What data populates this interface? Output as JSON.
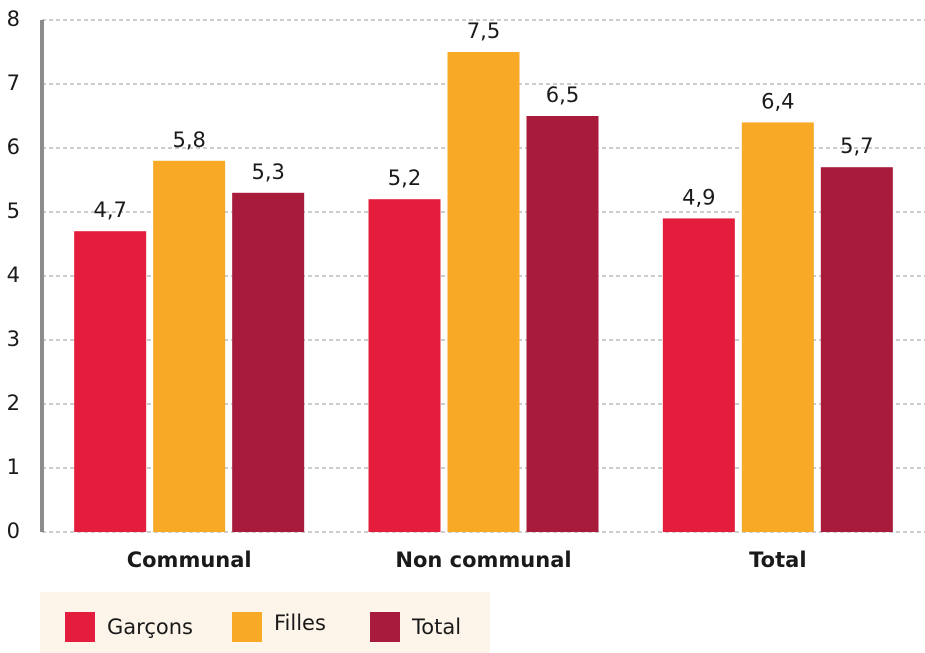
{
  "chart_data": {
    "type": "bar",
    "categories": [
      "Communal",
      "Non communal",
      "Total"
    ],
    "series": [
      {
        "name": "Garçons",
        "color": "#e31d3b",
        "values": [
          4.7,
          5.2,
          4.9
        ],
        "value_labels": [
          "4,7",
          "5,2",
          "4,9"
        ]
      },
      {
        "name": "Filles",
        "color": "#f8aa27",
        "values": [
          5.8,
          7.5,
          6.4
        ],
        "value_labels": [
          "5,8",
          "7,5",
          "6,4"
        ]
      },
      {
        "name": "Total",
        "color": "#a81b3b",
        "values": [
          5.3,
          6.5,
          5.7
        ],
        "value_labels": [
          "5,3",
          "6,5",
          "5,7"
        ]
      }
    ],
    "ylim": [
      0,
      8
    ],
    "yticks": [
      0,
      1,
      2,
      3,
      4,
      5,
      6,
      7,
      8
    ],
    "grid": true,
    "legend": "bottom"
  }
}
